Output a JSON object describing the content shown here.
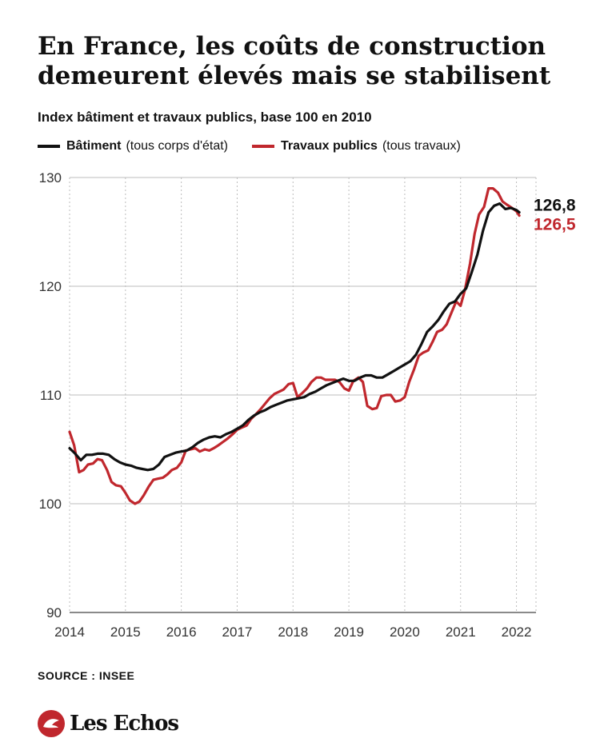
{
  "title": "En France, les coûts de construction demeurent élevés mais se stabilisent",
  "subtitle": "Index bâtiment et travaux publics, base 100 en 2010",
  "source": "SOURCE : INSEE",
  "brand": "Les Echos",
  "colors": {
    "batiment": "#111111",
    "travaux": "#c0272d",
    "grid": "#bdbdbd"
  },
  "chart_data": {
    "type": "line",
    "title": "En France, les coûts de construction demeurent élevés mais se stabilisent",
    "subtitle": "Index bâtiment et travaux publics, base 100 en 2010",
    "xlabel": "",
    "ylabel": "",
    "ylim": [
      90,
      130
    ],
    "xlim": [
      2014.0,
      2022.35
    ],
    "yticks": [
      90,
      100,
      110,
      120,
      130
    ],
    "xticks": [
      2014,
      2015,
      2016,
      2017,
      2018,
      2019,
      2020,
      2021,
      2022
    ],
    "grid": true,
    "legend_position": "top-left",
    "series": [
      {
        "name": "Bâtiment",
        "note": "(tous corps d'état)",
        "color": "#111111",
        "end_label": "126,8",
        "points": [
          [
            2014.0,
            105.1
          ],
          [
            2014.1,
            104.6
          ],
          [
            2014.2,
            104.0
          ],
          [
            2014.3,
            104.5
          ],
          [
            2014.4,
            104.5
          ],
          [
            2014.5,
            104.6
          ],
          [
            2014.6,
            104.6
          ],
          [
            2014.7,
            104.5
          ],
          [
            2014.8,
            104.1
          ],
          [
            2014.9,
            103.8
          ],
          [
            2015.0,
            103.6
          ],
          [
            2015.1,
            103.5
          ],
          [
            2015.2,
            103.3
          ],
          [
            2015.3,
            103.2
          ],
          [
            2015.4,
            103.1
          ],
          [
            2015.5,
            103.2
          ],
          [
            2015.6,
            103.6
          ],
          [
            2015.7,
            104.3
          ],
          [
            2015.8,
            104.5
          ],
          [
            2015.9,
            104.7
          ],
          [
            2016.0,
            104.8
          ],
          [
            2016.1,
            104.9
          ],
          [
            2016.2,
            105.2
          ],
          [
            2016.3,
            105.6
          ],
          [
            2016.4,
            105.9
          ],
          [
            2016.5,
            106.1
          ],
          [
            2016.6,
            106.2
          ],
          [
            2016.7,
            106.1
          ],
          [
            2016.8,
            106.4
          ],
          [
            2016.9,
            106.6
          ],
          [
            2017.0,
            106.9
          ],
          [
            2017.1,
            107.2
          ],
          [
            2017.2,
            107.7
          ],
          [
            2017.3,
            108.1
          ],
          [
            2017.4,
            108.4
          ],
          [
            2017.5,
            108.6
          ],
          [
            2017.6,
            108.9
          ],
          [
            2017.7,
            109.1
          ],
          [
            2017.8,
            109.3
          ],
          [
            2017.9,
            109.5
          ],
          [
            2018.0,
            109.6
          ],
          [
            2018.1,
            109.7
          ],
          [
            2018.2,
            109.8
          ],
          [
            2018.3,
            110.1
          ],
          [
            2018.4,
            110.3
          ],
          [
            2018.5,
            110.6
          ],
          [
            2018.6,
            110.9
          ],
          [
            2018.7,
            111.1
          ],
          [
            2018.8,
            111.3
          ],
          [
            2018.9,
            111.5
          ],
          [
            2019.0,
            111.3
          ],
          [
            2019.1,
            111.3
          ],
          [
            2019.2,
            111.6
          ],
          [
            2019.3,
            111.8
          ],
          [
            2019.4,
            111.8
          ],
          [
            2019.5,
            111.6
          ],
          [
            2019.6,
            111.6
          ],
          [
            2019.7,
            111.9
          ],
          [
            2019.8,
            112.2
          ],
          [
            2019.9,
            112.5
          ],
          [
            2020.0,
            112.8
          ],
          [
            2020.1,
            113.1
          ],
          [
            2020.2,
            113.7
          ],
          [
            2020.3,
            114.7
          ],
          [
            2020.4,
            115.8
          ],
          [
            2020.5,
            116.3
          ],
          [
            2020.6,
            116.9
          ],
          [
            2020.7,
            117.7
          ],
          [
            2020.8,
            118.4
          ],
          [
            2020.9,
            118.6
          ],
          [
            2021.0,
            119.3
          ],
          [
            2021.1,
            119.8
          ],
          [
            2021.2,
            121.3
          ],
          [
            2021.3,
            122.9
          ],
          [
            2021.4,
            125.1
          ],
          [
            2021.5,
            126.8
          ],
          [
            2021.6,
            127.4
          ],
          [
            2021.7,
            127.6
          ],
          [
            2021.8,
            127.1
          ],
          [
            2021.9,
            127.2
          ],
          [
            2022.0,
            127.0
          ],
          [
            2022.05,
            126.8
          ]
        ]
      },
      {
        "name": "Travaux publics",
        "note": "(tous travaux)",
        "color": "#c0272d",
        "end_label": "126,5",
        "points": [
          [
            2014.0,
            106.6
          ],
          [
            2014.08,
            105.4
          ],
          [
            2014.17,
            102.9
          ],
          [
            2014.25,
            103.1
          ],
          [
            2014.33,
            103.6
          ],
          [
            2014.42,
            103.7
          ],
          [
            2014.5,
            104.1
          ],
          [
            2014.58,
            104.0
          ],
          [
            2014.67,
            103.1
          ],
          [
            2014.75,
            102.0
          ],
          [
            2014.83,
            101.7
          ],
          [
            2014.92,
            101.6
          ],
          [
            2015.0,
            101.0
          ],
          [
            2015.08,
            100.3
          ],
          [
            2015.17,
            100.0
          ],
          [
            2015.25,
            100.2
          ],
          [
            2015.33,
            100.8
          ],
          [
            2015.42,
            101.6
          ],
          [
            2015.5,
            102.2
          ],
          [
            2015.58,
            102.3
          ],
          [
            2015.67,
            102.4
          ],
          [
            2015.75,
            102.7
          ],
          [
            2015.83,
            103.1
          ],
          [
            2015.92,
            103.3
          ],
          [
            2016.0,
            103.8
          ],
          [
            2016.08,
            104.9
          ],
          [
            2016.17,
            105.0
          ],
          [
            2016.25,
            105.1
          ],
          [
            2016.33,
            104.8
          ],
          [
            2016.42,
            105.0
          ],
          [
            2016.5,
            104.9
          ],
          [
            2016.58,
            105.1
          ],
          [
            2016.67,
            105.4
          ],
          [
            2016.75,
            105.7
          ],
          [
            2016.83,
            106.0
          ],
          [
            2016.92,
            106.4
          ],
          [
            2017.0,
            106.8
          ],
          [
            2017.08,
            107.0
          ],
          [
            2017.17,
            107.2
          ],
          [
            2017.25,
            107.8
          ],
          [
            2017.33,
            108.2
          ],
          [
            2017.42,
            108.7
          ],
          [
            2017.5,
            109.2
          ],
          [
            2017.58,
            109.7
          ],
          [
            2017.67,
            110.1
          ],
          [
            2017.75,
            110.3
          ],
          [
            2017.83,
            110.5
          ],
          [
            2017.92,
            111.0
          ],
          [
            2018.0,
            111.1
          ],
          [
            2018.08,
            109.8
          ],
          [
            2018.17,
            110.2
          ],
          [
            2018.25,
            110.6
          ],
          [
            2018.33,
            111.2
          ],
          [
            2018.42,
            111.6
          ],
          [
            2018.5,
            111.6
          ],
          [
            2018.58,
            111.4
          ],
          [
            2018.67,
            111.4
          ],
          [
            2018.75,
            111.4
          ],
          [
            2018.83,
            111.2
          ],
          [
            2018.92,
            110.6
          ],
          [
            2019.0,
            110.4
          ],
          [
            2019.08,
            111.3
          ],
          [
            2019.17,
            111.6
          ],
          [
            2019.25,
            111.2
          ],
          [
            2019.33,
            109.0
          ],
          [
            2019.42,
            108.7
          ],
          [
            2019.5,
            108.8
          ],
          [
            2019.58,
            109.9
          ],
          [
            2019.67,
            110.0
          ],
          [
            2019.75,
            110.0
          ],
          [
            2019.83,
            109.4
          ],
          [
            2019.92,
            109.5
          ],
          [
            2020.0,
            109.8
          ],
          [
            2020.08,
            111.2
          ],
          [
            2020.17,
            112.4
          ],
          [
            2020.25,
            113.6
          ],
          [
            2020.33,
            113.9
          ],
          [
            2020.42,
            114.1
          ],
          [
            2020.5,
            114.9
          ],
          [
            2020.58,
            115.8
          ],
          [
            2020.67,
            116.0
          ],
          [
            2020.75,
            116.5
          ],
          [
            2020.83,
            117.5
          ],
          [
            2020.92,
            118.6
          ],
          [
            2021.0,
            118.2
          ],
          [
            2021.08,
            119.7
          ],
          [
            2021.17,
            122.1
          ],
          [
            2021.25,
            124.8
          ],
          [
            2021.33,
            126.6
          ],
          [
            2021.42,
            127.3
          ],
          [
            2021.5,
            129.0
          ],
          [
            2021.58,
            129.0
          ],
          [
            2021.67,
            128.6
          ],
          [
            2021.75,
            127.8
          ],
          [
            2021.83,
            127.5
          ],
          [
            2021.92,
            127.2
          ],
          [
            2022.0,
            126.9
          ],
          [
            2022.05,
            126.5
          ]
        ]
      }
    ]
  }
}
